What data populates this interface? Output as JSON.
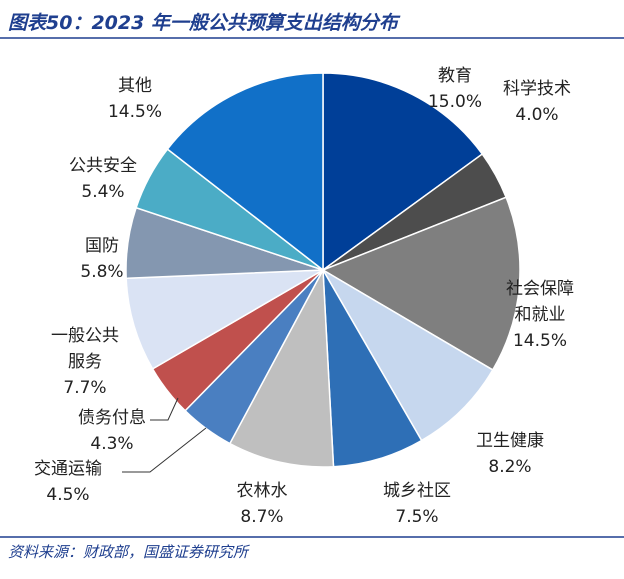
{
  "chart_data": {
    "type": "pie",
    "title": "图表50：2023 年一般公共预算支出结构分布",
    "source": "资料来源：财政部，国盛证券研究所",
    "categories": [
      "教育",
      "科学技术",
      "社会保障和就业",
      "卫生健康",
      "城乡社区",
      "农林水",
      "交通运输",
      "债务付息",
      "一般公共服务",
      "国防",
      "公共安全",
      "其他"
    ],
    "values": [
      15.0,
      4.0,
      14.5,
      8.2,
      7.5,
      8.7,
      4.5,
      4.3,
      7.7,
      5.8,
      5.4,
      14.5
    ],
    "value_labels": [
      "15.0%",
      "4.0%",
      "14.5%",
      "8.2%",
      "7.5%",
      "8.7%",
      "4.5%",
      "4.3%",
      "7.7%",
      "5.8%",
      "5.4%",
      "14.5%"
    ],
    "colors": [
      "#003f98",
      "#4d4d4d",
      "#7f7f7f",
      "#c6d7ee",
      "#2e6fb6",
      "#bfbfbf",
      "#4a7fc1",
      "#c0504d",
      "#dae3f4",
      "#8497b0",
      "#4bacc6",
      "#1170c8"
    ]
  }
}
